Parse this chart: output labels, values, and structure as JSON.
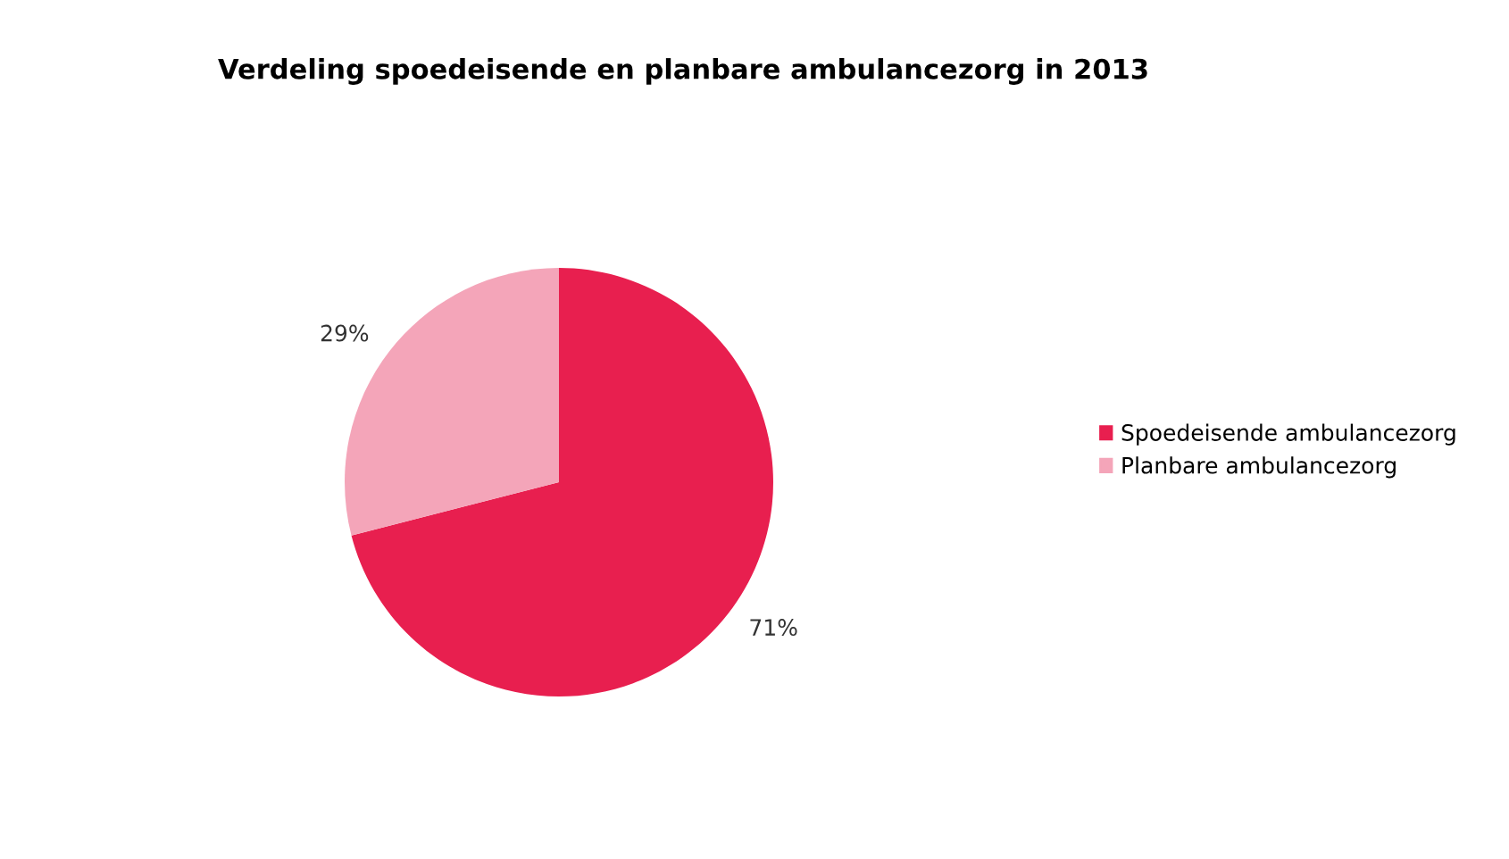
{
  "chart_data": {
    "type": "pie",
    "title": "Verdeling spoedeisende en planbare ambulancezorg in 2013",
    "categories": [
      "Spoedeisende ambulancezorg",
      "Planbare ambulancezorg"
    ],
    "values": [
      71,
      29
    ],
    "value_labels": [
      "71%",
      "29%"
    ],
    "colors": [
      "#e81f4f",
      "#f4a5b9"
    ],
    "legend": "right"
  }
}
